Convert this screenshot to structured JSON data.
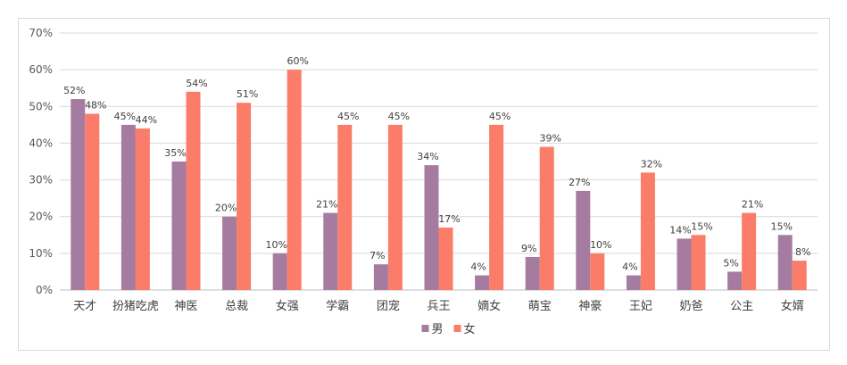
{
  "chart_data": {
    "type": "bar",
    "categories": [
      "天才",
      "扮猪吃虎",
      "神医",
      "总裁",
      "女强",
      "学霸",
      "团宠",
      "兵王",
      "嫡女",
      "萌宝",
      "神豪",
      "王妃",
      "奶爸",
      "公主",
      "女婿"
    ],
    "series": [
      {
        "name": "男",
        "color": "#a57ba0",
        "values": [
          52,
          45,
          35,
          20,
          10,
          21,
          7,
          34,
          4,
          9,
          27,
          4,
          14,
          5,
          15
        ],
        "value_labels": [
          "52%",
          "45%",
          "35%",
          "20%",
          "10%",
          "21%",
          "7%",
          "34%",
          "4%",
          "9%",
          "27%",
          "4%",
          "14%",
          "5%",
          "15%"
        ]
      },
      {
        "name": "女",
        "color": "#fb7d69",
        "values": [
          48,
          44,
          54,
          51,
          60,
          45,
          45,
          17,
          45,
          39,
          10,
          32,
          15,
          21,
          8
        ],
        "value_labels": [
          "48%",
          "44%",
          "54%",
          "51%",
          "60%",
          "45%",
          "45%",
          "17%",
          "45%",
          "39%",
          "10%",
          "32%",
          "15%",
          "21%",
          "8%"
        ]
      }
    ],
    "y_ticks": [
      0,
      10,
      20,
      30,
      40,
      50,
      60,
      70
    ],
    "y_tick_labels": [
      "0%",
      "10%",
      "20%",
      "30%",
      "40%",
      "50%",
      "60%",
      "70%"
    ],
    "ylim": [
      0,
      70
    ],
    "grid": true,
    "legend_position": "bottom-center",
    "gridline_color": "#d9d9d9",
    "axis_color": "#bfbfbf"
  }
}
